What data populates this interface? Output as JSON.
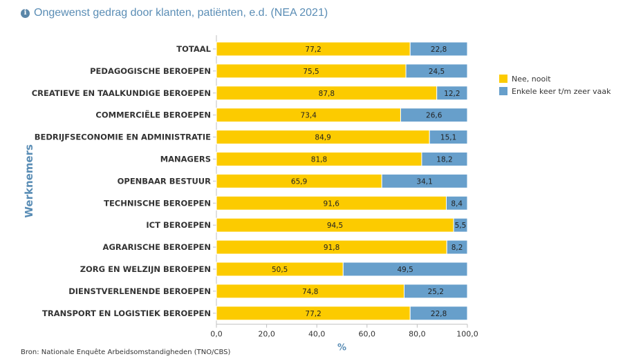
{
  "title": "Ongewenst gedrag door klanten, patiënten, e.d. (NEA 2021)",
  "source": "Bron: Nationale Enquête Arbeidsomstandigheden (TNO/CBS)",
  "chart_data": {
    "type": "bar",
    "orientation": "horizontal",
    "stacked": true,
    "title": "Ongewenst gedrag door klanten, patiënten, e.d. (NEA 2021)",
    "xlabel": "%",
    "ylabel": "Werknemers",
    "xlim": [
      0,
      100
    ],
    "xticks": [
      "0,0",
      "20,0",
      "40,0",
      "60,0",
      "80,0",
      "100,0"
    ],
    "legend_position": "right",
    "categories": [
      "TOTAAL",
      "PEDAGOGISCHE BEROEPEN",
      "CREATIEVE EN TAALKUNDIGE BEROEPEN",
      "COMMERCIËLE BEROEPEN",
      "BEDRIJFSECONOMIE EN ADMINISTRATIE",
      "MANAGERS",
      "OPENBAAR BESTUUR",
      "TECHNISCHE BEROEPEN",
      "ICT BEROEPEN",
      "AGRARISCHE BEROEPEN",
      "ZORG EN WELZIJN BEROEPEN",
      "DIENSTVERLENENDE BEROEPEN",
      "TRANSPORT EN LOGISTIEK BEROEPEN"
    ],
    "series": [
      {
        "name": "Nee, nooit",
        "color": "#fccb00",
        "values": [
          77.2,
          75.5,
          87.8,
          73.4,
          84.9,
          81.8,
          65.9,
          91.6,
          94.5,
          91.8,
          50.5,
          74.8,
          77.2
        ],
        "labels": [
          "77,2",
          "75,5",
          "87,8",
          "73,4",
          "84,9",
          "81,8",
          "65,9",
          "91,6",
          "94,5",
          "91,8",
          "50,5",
          "74,8",
          "77,2"
        ]
      },
      {
        "name": "Enkele keer t/m zeer vaak",
        "color": "#679fcb",
        "values": [
          22.8,
          24.5,
          12.2,
          26.6,
          15.1,
          18.2,
          34.1,
          8.4,
          5.5,
          8.2,
          49.5,
          25.2,
          22.8
        ],
        "labels": [
          "22,8",
          "24,5",
          "12,2",
          "26,6",
          "15,1",
          "18,2",
          "34,1",
          "8,4",
          "5,5",
          "8,2",
          "49,5",
          "25,2",
          "22,8"
        ]
      }
    ]
  }
}
